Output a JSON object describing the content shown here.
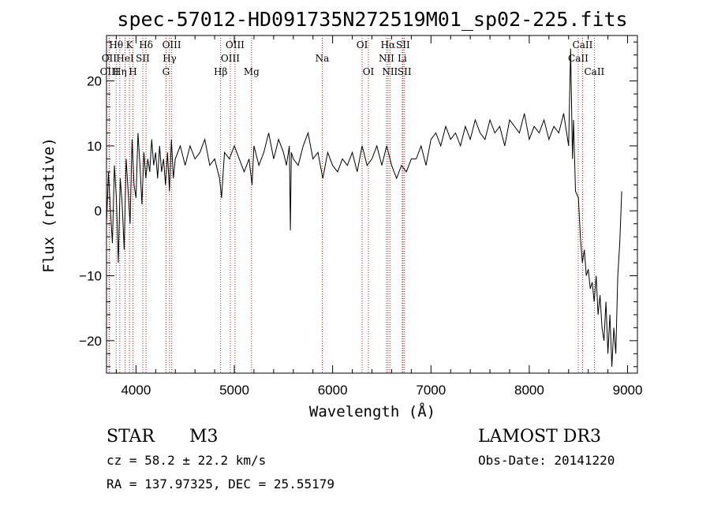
{
  "chart_data": {
    "type": "line",
    "title": "spec-57012-HD091735N272519M01_sp02-225.fits",
    "xlabel": "Wavelength (Å)",
    "ylabel": "Flux (relative)",
    "xlim": [
      3700,
      9100
    ],
    "ylim": [
      -25,
      27
    ],
    "x_ticks": [
      4000,
      5000,
      6000,
      7000,
      8000,
      9000
    ],
    "y_ticks": [
      -20,
      -10,
      0,
      10,
      20
    ],
    "grid": false,
    "line_color": "#000000",
    "marker_color": "#b22222",
    "spectral_lines": [
      {
        "label": "OII",
        "wavelength": 3727,
        "row": 2
      },
      {
        "label": "OIII",
        "wavelength": 3729,
        "row": 3
      },
      {
        "label": "Hθ",
        "wavelength": 3798,
        "row": 1
      },
      {
        "label": "Hη",
        "wavelength": 3835,
        "row": 3
      },
      {
        "label": "HeI",
        "wavelength": 3889,
        "row": 2
      },
      {
        "label": "K",
        "wavelength": 3934,
        "row": 1
      },
      {
        "label": "H",
        "wavelength": 3969,
        "row": 3
      },
      {
        "label": "SII",
        "wavelength": 4069,
        "row": 2
      },
      {
        "label": "Hδ",
        "wavelength": 4102,
        "row": 1
      },
      {
        "label": "G",
        "wavelength": 4305,
        "row": 3
      },
      {
        "label": "Hγ",
        "wavelength": 4341,
        "row": 2
      },
      {
        "label": "OIII",
        "wavelength": 4363,
        "row": 1
      },
      {
        "label": "Hβ",
        "wavelength": 4861,
        "row": 3
      },
      {
        "label": "OIII",
        "wavelength": 4959,
        "row": 2
      },
      {
        "label": "OIII",
        "wavelength": 5007,
        "row": 1
      },
      {
        "label": "Mg",
        "wavelength": 5175,
        "row": 3
      },
      {
        "label": "Na",
        "wavelength": 5894,
        "row": 2
      },
      {
        "label": "OI",
        "wavelength": 6300,
        "row": 1
      },
      {
        "label": "OI",
        "wavelength": 6364,
        "row": 3
      },
      {
        "label": "NII",
        "wavelength": 6548,
        "row": 2
      },
      {
        "label": "Hα",
        "wavelength": 6563,
        "row": 1
      },
      {
        "label": "NII",
        "wavelength": 6583,
        "row": 3
      },
      {
        "label": "Li",
        "wavelength": 6708,
        "row": 2
      },
      {
        "label": "SII",
        "wavelength": 6716,
        "row": 1
      },
      {
        "label": "SII",
        "wavelength": 6731,
        "row": 3
      },
      {
        "label": "CaII",
        "wavelength": 8498,
        "row": 2
      },
      {
        "label": "CaII",
        "wavelength": 8542,
        "row": 1
      },
      {
        "label": "CaII",
        "wavelength": 8662,
        "row": 3
      }
    ],
    "series": [
      {
        "x": [
          3700,
          3720,
          3740,
          3760,
          3780,
          3800,
          3820,
          3840,
          3860,
          3880,
          3900,
          3920,
          3940,
          3960,
          3980,
          4000,
          4020,
          4040,
          4060,
          4080,
          4100,
          4120,
          4140,
          4160,
          4180,
          4200,
          4220,
          4240,
          4260,
          4280,
          4300,
          4320,
          4340,
          4360,
          4380,
          4400,
          4450,
          4500,
          4550,
          4600,
          4650,
          4700,
          4750,
          4800,
          4850,
          4870,
          4900,
          4950,
          5000,
          5050,
          5100,
          5150,
          5180,
          5200,
          5250,
          5300,
          5350,
          5400,
          5450,
          5500,
          5530,
          5560,
          5570,
          5580,
          5600,
          5650,
          5700,
          5750,
          5800,
          5850,
          5900,
          5950,
          6000,
          6050,
          6100,
          6150,
          6200,
          6250,
          6300,
          6350,
          6400,
          6450,
          6500,
          6550,
          6600,
          6650,
          6700,
          6750,
          6800,
          6850,
          6900,
          6950,
          7000,
          7050,
          7100,
          7150,
          7200,
          7250,
          7300,
          7350,
          7400,
          7450,
          7500,
          7550,
          7600,
          7650,
          7700,
          7750,
          7800,
          7850,
          7900,
          7950,
          8000,
          8050,
          8100,
          8150,
          8200,
          8250,
          8300,
          8350,
          8400,
          8420,
          8440,
          8450,
          8470,
          8500,
          8520,
          8540,
          8560,
          8580,
          8600,
          8620,
          8640,
          8660,
          8680,
          8700,
          8720,
          8740,
          8760,
          8780,
          8800,
          8820,
          8840,
          8860,
          8880,
          8900,
          8920,
          8940
        ],
        "y": [
          -2,
          6,
          0,
          -5,
          7,
          2,
          -8,
          5,
          1,
          -6,
          8,
          3,
          -2,
          11,
          4,
          2,
          12,
          7,
          1,
          9,
          5,
          8,
          6,
          11,
          7,
          9,
          5,
          10,
          6,
          8,
          4,
          9,
          3,
          11,
          5,
          8,
          10,
          7,
          10,
          8,
          9,
          11,
          7,
          8,
          5,
          2,
          9,
          8,
          10,
          8,
          6,
          8,
          4,
          10,
          7,
          9,
          12,
          8,
          11,
          9,
          7,
          10,
          -3,
          9,
          8,
          7,
          10,
          12,
          8,
          9,
          5,
          9,
          7,
          6,
          8,
          7,
          9,
          6,
          10,
          7,
          8,
          10,
          7,
          10,
          7,
          5,
          7,
          6,
          8,
          8,
          10,
          7,
          11,
          12,
          10,
          13,
          11,
          12,
          10,
          13,
          11,
          14,
          12,
          11,
          14,
          12,
          13,
          10,
          14,
          13,
          12,
          15,
          11,
          13,
          12,
          14,
          11,
          13,
          12,
          15,
          10,
          25,
          8,
          14,
          3,
          2,
          -4,
          -8,
          -6,
          -10,
          -9,
          -12,
          -11,
          -14,
          -10,
          -16,
          -13,
          -18,
          -20,
          -14,
          -22,
          -16,
          -24,
          -18,
          -22,
          -10,
          -5,
          3
        ]
      }
    ]
  },
  "info": {
    "class": "STAR",
    "subclass": "M3",
    "survey": "LAMOST DR3",
    "cz": "cz = 58.2 ± 22.2 km/s",
    "obs_date": "Obs-Date: 20141220",
    "coords": "RA = 137.97325, DEC =  25.55179"
  }
}
